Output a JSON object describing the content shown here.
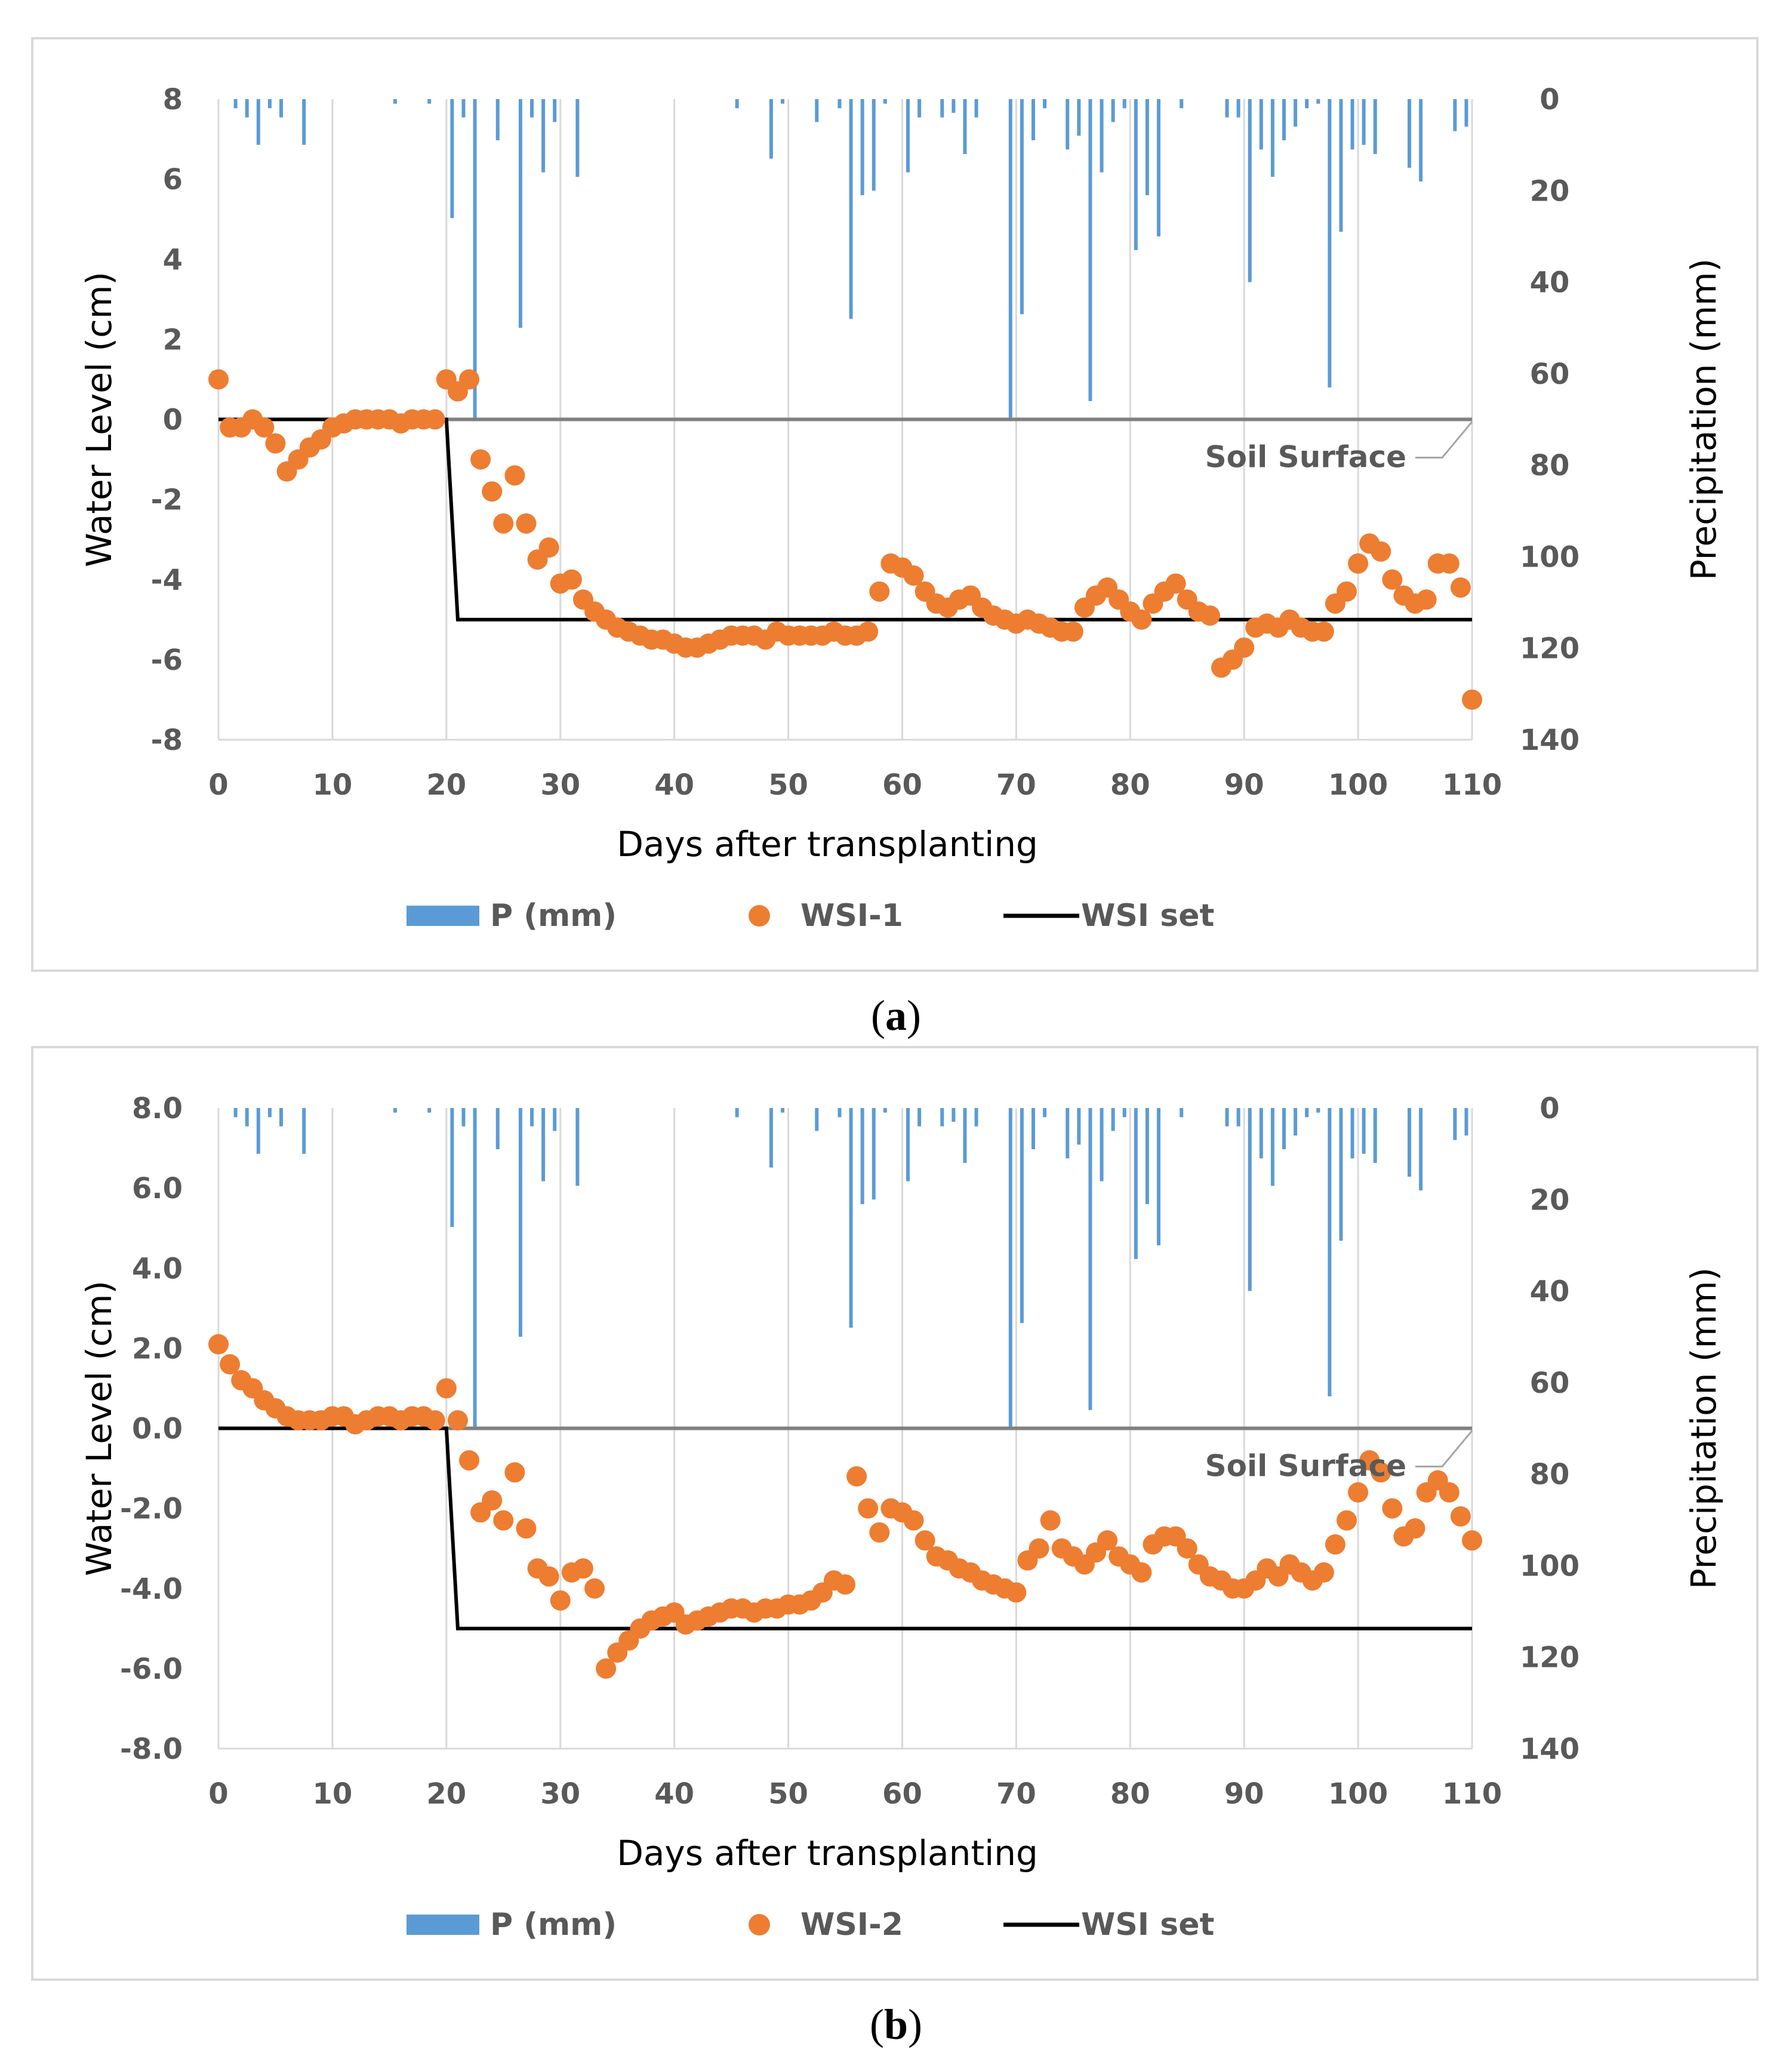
{
  "colors": {
    "precip_bar": "#5b9bd5",
    "wsi_point": "#ed7d31",
    "wsi_set_line": "#000000",
    "soil_surface_line": "#808080",
    "gridline": "#d9d9d9",
    "tick_text": "#595959"
  },
  "chart_data": [
    {
      "type": "combo",
      "panel_label": "a",
      "xlabel": "Days after transplanting",
      "ylabel_left": "Water Level (cm)",
      "ylabel_right": "Precipitation (mm)",
      "xlim": [
        0,
        110
      ],
      "x_ticks": [
        "0",
        "10",
        "20",
        "30",
        "40",
        "50",
        "60",
        "70",
        "80",
        "90",
        "100",
        "110"
      ],
      "ylim_left": [
        -8,
        8
      ],
      "y_ticks_left": [
        "8",
        "6",
        "4",
        "2",
        "0",
        "-2",
        "-4",
        "-6",
        "-8"
      ],
      "ylim_right_inverted": [
        0,
        140
      ],
      "y_ticks_right": [
        "0",
        "20",
        "40",
        "60",
        "80",
        "100",
        "120",
        "140"
      ],
      "grid": "vertical",
      "legend": [
        "P (mm)",
        "WSI-1",
        "WSI set"
      ],
      "legend_position": "bottom",
      "annotation": "Soil Surface",
      "series": [
        {
          "name": "P (mm)",
          "kind": "bar",
          "axis": "right",
          "x": [
            1.5,
            2.5,
            3.5,
            4.5,
            5.5,
            7.5,
            15.5,
            18.5,
            20.5,
            21.5,
            22.5,
            24.5,
            26.5,
            27.5,
            28.5,
            29.5,
            31.5,
            45.5,
            48.5,
            49.5,
            52.5,
            54.5,
            55.5,
            56.5,
            57.5,
            58.5,
            60.5,
            61.5,
            63.5,
            64.5,
            65.5,
            66.5,
            69.5,
            70.5,
            71.5,
            72.5,
            74.5,
            75.5,
            76.5,
            77.5,
            78.5,
            79.5,
            80.5,
            81.5,
            82.5,
            84.5,
            88.5,
            89.5,
            90.5,
            91.5,
            92.5,
            93.5,
            94.5,
            95.5,
            96.5,
            97.5,
            98.5,
            99.5,
            100.5,
            101.5,
            102.5,
            104.5,
            105.5,
            108.5,
            109.5
          ],
          "values": [
            2,
            4,
            10,
            2,
            4,
            10,
            1,
            1,
            26,
            4,
            70,
            9,
            50,
            4,
            16,
            5,
            17,
            2,
            13,
            1,
            5,
            2,
            48,
            21,
            20,
            1,
            16,
            4,
            4,
            3,
            12,
            4,
            70,
            47,
            9,
            2,
            11,
            8,
            66,
            16,
            5,
            2,
            33,
            21,
            30,
            2,
            4,
            4,
            40,
            11,
            17,
            9,
            6,
            2,
            1,
            63,
            29,
            11,
            10,
            12,
            0,
            15,
            18,
            7,
            6
          ]
        },
        {
          "name": "WSI-1",
          "kind": "scatter",
          "axis": "left",
          "x": [
            0,
            1,
            2,
            3,
            4,
            5,
            6,
            7,
            8,
            9,
            10,
            11,
            12,
            13,
            14,
            15,
            16,
            17,
            18,
            19,
            20,
            21,
            22,
            23,
            24,
            25,
            26,
            27,
            28,
            29,
            30,
            31,
            32,
            33,
            34,
            35,
            36,
            37,
            38,
            39,
            40,
            41,
            42,
            43,
            44,
            45,
            46,
            47,
            48,
            49,
            50,
            51,
            52,
            53,
            54,
            55,
            56,
            57,
            58,
            59,
            60,
            61,
            62,
            63,
            64,
            65,
            66,
            67,
            68,
            69,
            70,
            71,
            72,
            73,
            74,
            75,
            76,
            77,
            78,
            79,
            80,
            81,
            82,
            83,
            84,
            85,
            86,
            87,
            88,
            89,
            90,
            91,
            92,
            93,
            94,
            95,
            96,
            97,
            98,
            99,
            100,
            101,
            102,
            103,
            104,
            105,
            106,
            107,
            108,
            109,
            110
          ],
          "values": [
            1.0,
            -0.2,
            -0.2,
            0.0,
            -0.2,
            -0.6,
            -1.3,
            -1.0,
            -0.7,
            -0.5,
            -0.2,
            -0.1,
            0.0,
            0.0,
            0.0,
            0.0,
            -0.1,
            0.0,
            0.0,
            0.0,
            1.0,
            0.7,
            1.0,
            -1.0,
            -1.8,
            -2.6,
            -1.4,
            -2.6,
            -3.5,
            -3.2,
            -4.1,
            -4.0,
            -4.5,
            -4.8,
            -5.0,
            -5.2,
            -5.3,
            -5.4,
            -5.5,
            -5.5,
            -5.6,
            -5.7,
            -5.7,
            -5.6,
            -5.5,
            -5.4,
            -5.4,
            -5.4,
            -5.5,
            -5.3,
            -5.4,
            -5.4,
            -5.4,
            -5.4,
            -5.3,
            -5.4,
            -5.4,
            -5.3,
            -4.3,
            -3.6,
            -3.7,
            -3.9,
            -4.3,
            -4.6,
            -4.7,
            -4.5,
            -4.4,
            -4.7,
            -4.9,
            -5.0,
            -5.1,
            -5.0,
            -5.1,
            -5.2,
            -5.3,
            -5.3,
            -4.7,
            -4.4,
            -4.2,
            -4.5,
            -4.8,
            -5.0,
            -4.6,
            -4.3,
            -4.1,
            -4.5,
            -4.8,
            -4.9,
            -6.2,
            -6.0,
            -5.7,
            -5.2,
            -5.1,
            -5.2,
            -5.0,
            -5.2,
            -5.3,
            -5.3,
            -4.6,
            -4.3,
            -3.6,
            -3.1,
            -3.3,
            -4.0,
            -4.4,
            -4.6,
            -4.5,
            -3.6,
            -3.6,
            -4.2,
            -7.0
          ]
        },
        {
          "name": "WSI set",
          "kind": "line",
          "axis": "left",
          "x": [
            0,
            20,
            21,
            110
          ],
          "values": [
            0,
            0,
            -5,
            -5
          ]
        }
      ]
    },
    {
      "type": "combo",
      "panel_label": "b",
      "xlabel": "Days after transplanting",
      "ylabel_left": "Water Level (cm)",
      "ylabel_right": "Precipitation (mm)",
      "xlim": [
        0,
        110
      ],
      "x_ticks": [
        "0",
        "10",
        "20",
        "30",
        "40",
        "50",
        "60",
        "70",
        "80",
        "90",
        "100",
        "110"
      ],
      "ylim_left": [
        -8,
        8
      ],
      "y_ticks_left": [
        "8.0",
        "6.0",
        "4.0",
        "2.0",
        "0.0",
        "-2.0",
        "-4.0",
        "-6.0",
        "-8.0"
      ],
      "ylim_right_inverted": [
        0,
        140
      ],
      "y_ticks_right": [
        "0",
        "20",
        "40",
        "60",
        "80",
        "100",
        "120",
        "140"
      ],
      "grid": "vertical",
      "legend": [
        "P (mm)",
        "WSI-2",
        "WSI set"
      ],
      "legend_position": "bottom",
      "annotation": "Soil Surface",
      "series": [
        {
          "name": "P (mm)",
          "kind": "bar",
          "axis": "right",
          "x": [
            1.5,
            2.5,
            3.5,
            4.5,
            5.5,
            7.5,
            15.5,
            18.5,
            20.5,
            21.5,
            22.5,
            24.5,
            26.5,
            27.5,
            28.5,
            29.5,
            31.5,
            45.5,
            48.5,
            49.5,
            52.5,
            54.5,
            55.5,
            56.5,
            57.5,
            58.5,
            60.5,
            61.5,
            63.5,
            64.5,
            65.5,
            66.5,
            69.5,
            70.5,
            71.5,
            72.5,
            74.5,
            75.5,
            76.5,
            77.5,
            78.5,
            79.5,
            80.5,
            81.5,
            82.5,
            84.5,
            88.5,
            89.5,
            90.5,
            91.5,
            92.5,
            93.5,
            94.5,
            95.5,
            96.5,
            97.5,
            98.5,
            99.5,
            100.5,
            101.5,
            102.5,
            104.5,
            105.5,
            108.5,
            109.5
          ],
          "values": [
            2,
            4,
            10,
            2,
            4,
            10,
            1,
            1,
            26,
            4,
            70,
            9,
            50,
            4,
            16,
            5,
            17,
            2,
            13,
            1,
            5,
            2,
            48,
            21,
            20,
            1,
            16,
            4,
            4,
            3,
            12,
            4,
            70,
            47,
            9,
            2,
            11,
            8,
            66,
            16,
            5,
            2,
            33,
            21,
            30,
            2,
            4,
            4,
            40,
            11,
            17,
            9,
            6,
            2,
            1,
            63,
            29,
            11,
            10,
            12,
            0,
            15,
            18,
            7,
            6
          ]
        },
        {
          "name": "WSI-2",
          "kind": "scatter",
          "axis": "left",
          "x": [
            0,
            1,
            2,
            3,
            4,
            5,
            6,
            7,
            8,
            9,
            10,
            11,
            12,
            13,
            14,
            15,
            16,
            17,
            18,
            19,
            20,
            21,
            22,
            23,
            24,
            25,
            26,
            27,
            28,
            29,
            30,
            31,
            32,
            33,
            34,
            35,
            36,
            37,
            38,
            39,
            40,
            41,
            42,
            43,
            44,
            45,
            46,
            47,
            48,
            49,
            50,
            51,
            52,
            53,
            54,
            55,
            56,
            57,
            58,
            59,
            60,
            61,
            62,
            63,
            64,
            65,
            66,
            67,
            68,
            69,
            70,
            71,
            72,
            73,
            74,
            75,
            76,
            77,
            78,
            79,
            80,
            81,
            82,
            83,
            84,
            85,
            86,
            87,
            88,
            89,
            90,
            91,
            92,
            93,
            94,
            95,
            96,
            97,
            98,
            99,
            100,
            101,
            102,
            103,
            104,
            105,
            106,
            107,
            108,
            109,
            110
          ],
          "values": [
            2.1,
            1.6,
            1.2,
            1.0,
            0.7,
            0.5,
            0.3,
            0.2,
            0.2,
            0.2,
            0.3,
            0.3,
            0.1,
            0.2,
            0.3,
            0.3,
            0.2,
            0.3,
            0.3,
            0.2,
            1.0,
            0.2,
            -0.8,
            -2.1,
            -1.8,
            -2.3,
            -1.1,
            -2.5,
            -3.5,
            -3.7,
            -4.3,
            -3.6,
            -3.5,
            -4.0,
            -6.0,
            -5.6,
            -5.3,
            -5.0,
            -4.8,
            -4.7,
            -4.6,
            -4.9,
            -4.8,
            -4.7,
            -4.6,
            -4.5,
            -4.5,
            -4.6,
            -4.5,
            -4.5,
            -4.4,
            -4.4,
            -4.3,
            -4.1,
            -3.8,
            -3.9,
            -1.2,
            -2.0,
            -2.6,
            -2.0,
            -2.1,
            -2.3,
            -2.8,
            -3.2,
            -3.3,
            -3.5,
            -3.6,
            -3.8,
            -3.9,
            -4.0,
            -4.1,
            -3.3,
            -3.0,
            -2.3,
            -3.0,
            -3.2,
            -3.4,
            -3.1,
            -2.8,
            -3.2,
            -3.4,
            -3.6,
            -2.9,
            -2.7,
            -2.7,
            -3.0,
            -3.4,
            -3.7,
            -3.8,
            -4.0,
            -4.0,
            -3.8,
            -3.5,
            -3.7,
            -3.4,
            -3.6,
            -3.8,
            -3.6,
            -2.9,
            -2.3,
            -1.6,
            -0.8,
            -1.1,
            -2.0,
            -2.7,
            -2.5,
            -1.6,
            -1.3,
            -1.6,
            -2.2,
            -2.8
          ]
        },
        {
          "name": "WSI set",
          "kind": "line",
          "axis": "left",
          "x": [
            0,
            20,
            21,
            110
          ],
          "values": [
            0,
            0,
            -5,
            -5
          ]
        }
      ]
    }
  ]
}
